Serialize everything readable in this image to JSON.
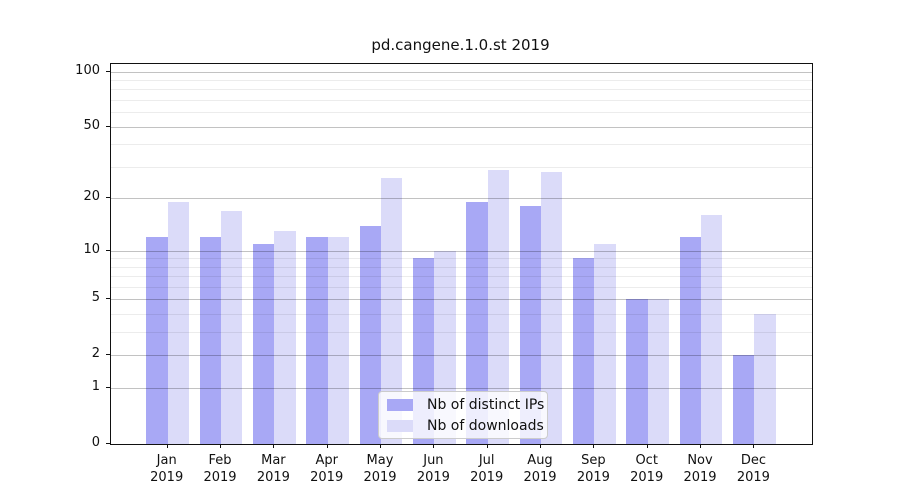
{
  "chart_data": {
    "type": "bar",
    "title": "pd.cangene.1.0.st 2019",
    "year_label": "2019",
    "categories": [
      "Jan",
      "Feb",
      "Mar",
      "Apr",
      "May",
      "Jun",
      "Jul",
      "Aug",
      "Sep",
      "Oct",
      "Nov",
      "Dec"
    ],
    "series": [
      {
        "name": "Nb of distinct IPs",
        "color": "#a8a8f5",
        "values": [
          12,
          12,
          11,
          12,
          14,
          9,
          19,
          18,
          9,
          5,
          12,
          2
        ]
      },
      {
        "name": "Nb of downloads",
        "color": "#dbdbf9",
        "values": [
          19,
          17,
          13,
          12,
          26,
          10,
          29,
          28,
          11,
          5,
          16,
          4
        ]
      }
    ],
    "yscale": "log1p",
    "ylim": [
      0,
      110
    ],
    "ymax": 110,
    "y_major_ticks": [
      0,
      1,
      2,
      5,
      10,
      20,
      50,
      100
    ],
    "y_minor_ticks": [
      3,
      4,
      6,
      7,
      8,
      9,
      30,
      40,
      60,
      70,
      80,
      90
    ],
    "grid": "horizontal",
    "legend_position": "lower-center",
    "colors": {
      "axis": "#111111",
      "grid_major": "rgba(0,0,0,0.24)",
      "grid_minor": "rgba(0,0,0,0.075)",
      "legend_border": "#cccccc"
    }
  }
}
